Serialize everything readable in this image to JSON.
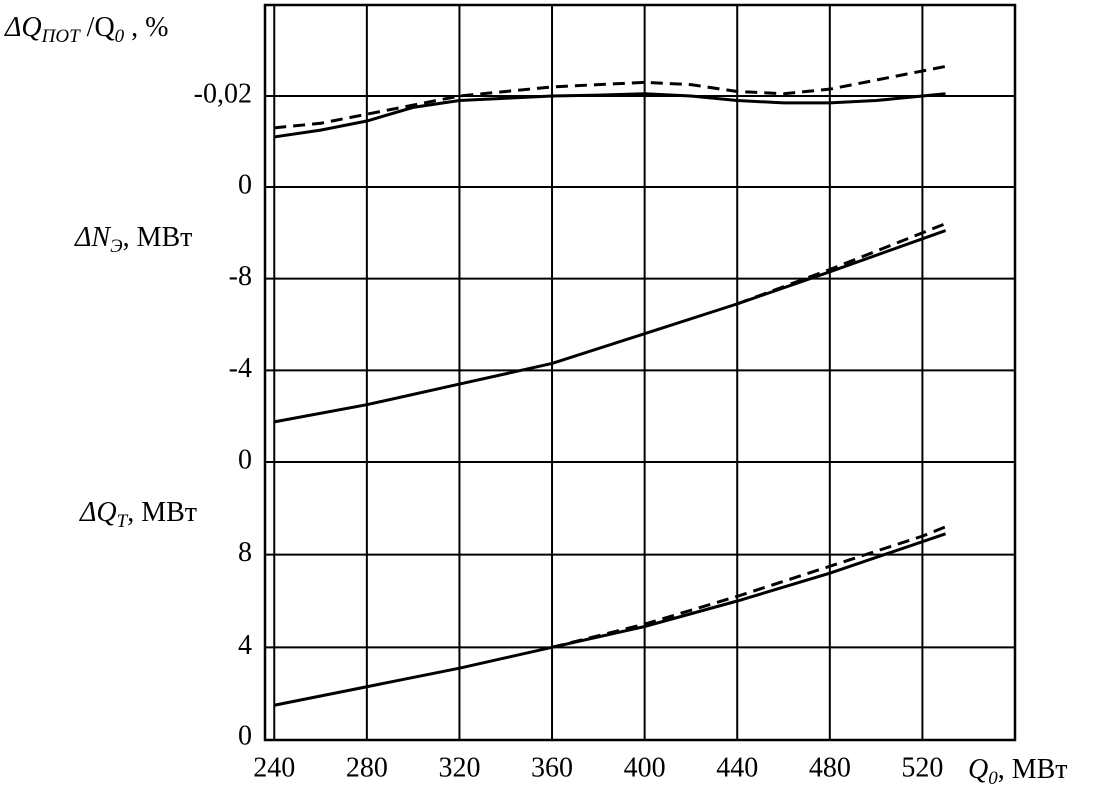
{
  "chart_data": [
    {
      "type": "line",
      "ylabel": [
        "ΔQ",
        "ПОТ",
        " /Q",
        "0",
        " , %"
      ],
      "xlim": [
        236,
        560
      ],
      "ylim": [
        0,
        -0.04
      ],
      "yticks": [
        {
          "value": -0.02,
          "label": "-0,02"
        },
        0
      ],
      "grid": true,
      "series": [
        {
          "color": "#000000",
          "linestyle": "solid",
          "x": [
            240,
            260,
            280,
            300,
            320,
            340,
            360,
            380,
            400,
            420,
            440,
            460,
            480,
            500,
            520,
            530
          ],
          "values": [
            -0.011,
            -0.0125,
            -0.0145,
            -0.0175,
            -0.019,
            -0.0195,
            -0.02,
            -0.0202,
            -0.0205,
            -0.02,
            -0.019,
            -0.0185,
            -0.0185,
            -0.019,
            -0.02,
            -0.0205
          ]
        },
        {
          "color": "#000000",
          "linestyle": "dashed",
          "x": [
            240,
            260,
            280,
            300,
            320,
            340,
            360,
            380,
            400,
            420,
            440,
            460,
            480,
            500,
            520,
            530
          ],
          "values": [
            -0.013,
            -0.014,
            -0.016,
            -0.018,
            -0.02,
            -0.021,
            -0.022,
            -0.0225,
            -0.023,
            -0.0225,
            -0.021,
            -0.0205,
            -0.0215,
            -0.0235,
            -0.0255,
            -0.0265
          ]
        }
      ]
    },
    {
      "type": "line",
      "ylabel": [
        "ΔN",
        "Э",
        ", МВт"
      ],
      "xlim": [
        236,
        560
      ],
      "ylim": [
        0,
        -12
      ],
      "yticks": [
        -8,
        -4,
        0
      ],
      "grid": true,
      "series": [
        {
          "color": "#000000",
          "linestyle": "solid",
          "x": [
            240,
            280,
            320,
            360,
            400,
            440,
            480,
            530
          ],
          "values": [
            -1.75,
            -2.5,
            -3.4,
            -4.3,
            -5.6,
            -6.9,
            -8.3,
            -10.1
          ]
        },
        {
          "color": "#000000",
          "linestyle": "dashed",
          "x": [
            440,
            480,
            530
          ],
          "values": [
            -6.9,
            -8.4,
            -10.4
          ]
        }
      ]
    },
    {
      "type": "line",
      "ylabel": [
        "ΔQ",
        "T",
        ", МВт"
      ],
      "xlabel": [
        "Q",
        "0",
        ",  МВт"
      ],
      "xlim": [
        236,
        560
      ],
      "ylim": [
        0,
        12
      ],
      "xticks": [
        240,
        280,
        320,
        360,
        400,
        440,
        480,
        520
      ],
      "yticks": [
        8,
        4,
        0
      ],
      "grid": true,
      "series": [
        {
          "color": "#000000",
          "linestyle": "solid",
          "x": [
            240,
            280,
            320,
            360,
            400,
            440,
            480,
            530
          ],
          "values": [
            1.5,
            2.3,
            3.1,
            4.0,
            4.9,
            6.0,
            7.2,
            8.9
          ]
        },
        {
          "color": "#000000",
          "linestyle": "dashed",
          "x": [
            360,
            400,
            440,
            480,
            520,
            530
          ],
          "values": [
            4.0,
            5.0,
            6.2,
            7.5,
            8.8,
            9.2
          ]
        }
      ]
    }
  ]
}
